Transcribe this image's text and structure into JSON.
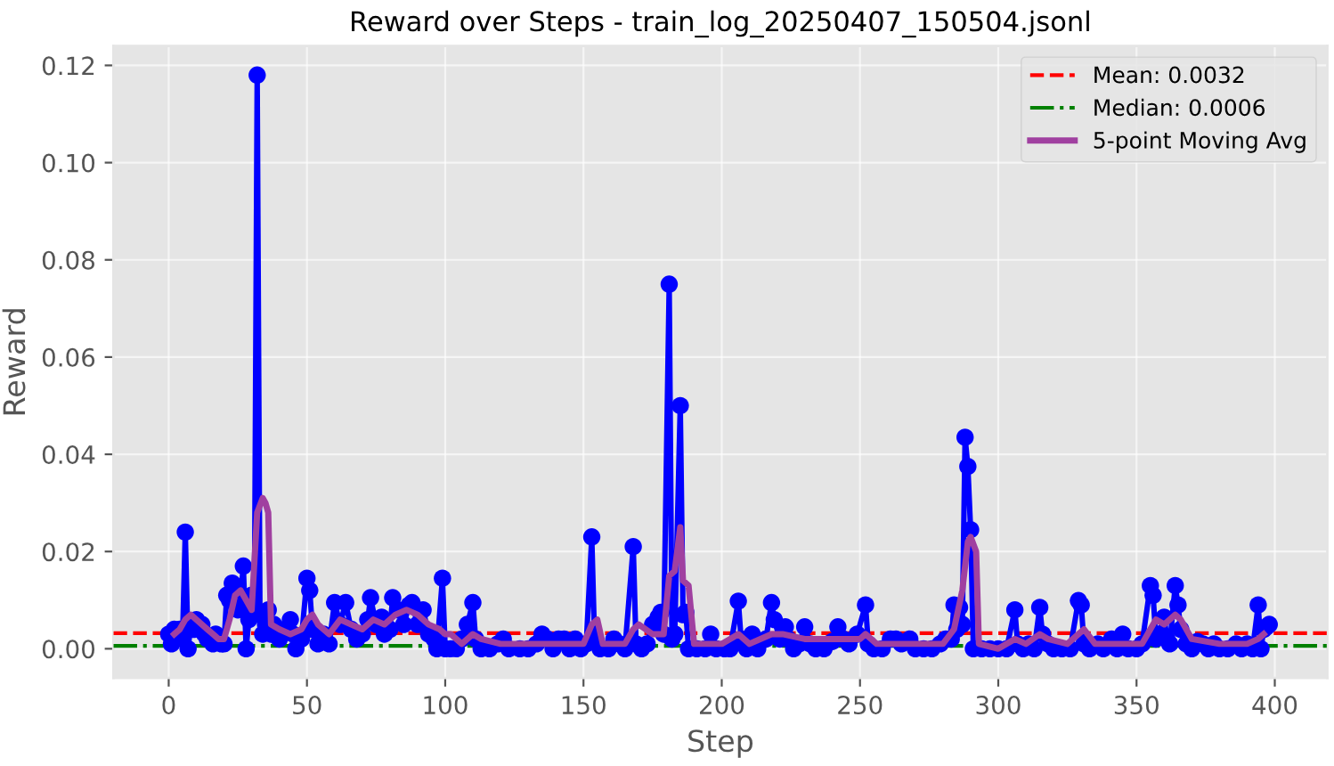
{
  "chart_data": {
    "type": "line",
    "title": "Reward over Steps - train_log_20250407_150504.jsonl",
    "xlabel": "Step",
    "ylabel": "Reward",
    "xlim": [
      -20,
      419
    ],
    "xticks": [
      0,
      50,
      100,
      150,
      200,
      250,
      300,
      350,
      400
    ],
    "ylim": [
      -0.006,
      0.124
    ],
    "yticks": [
      {
        "value": 0,
        "label": "0.00"
      },
      {
        "value": 0.02,
        "label": "0.02"
      },
      {
        "value": 0.04,
        "label": "0.04"
      },
      {
        "value": 0.06,
        "label": "0.06"
      },
      {
        "value": 0.08,
        "label": "0.08"
      },
      {
        "value": 0.1,
        "label": "0.10"
      },
      {
        "value": 0.12,
        "label": "0.12"
      }
    ],
    "grid": true,
    "legend": "top right",
    "series": [
      {
        "color": "#0000ff",
        "marker": "circle",
        "line_style": "solid",
        "x": [
          0,
          1,
          2,
          3,
          4,
          5,
          6,
          7,
          8,
          9,
          10,
          11,
          12,
          13,
          14,
          15,
          16,
          17,
          18,
          19,
          20,
          21,
          22,
          23,
          24,
          25,
          26,
          27,
          28,
          29,
          30,
          31,
          32,
          33,
          34,
          35,
          36,
          37,
          38,
          40,
          42,
          44,
          45,
          46,
          48,
          50,
          51,
          52,
          54,
          56,
          58,
          60,
          62,
          64,
          66,
          68,
          70,
          72,
          73,
          75,
          77,
          78,
          80,
          81,
          83,
          85,
          87,
          88,
          90,
          92,
          94,
          96,
          97,
          99,
          100,
          102,
          104,
          106,
          108,
          110,
          111,
          113,
          116,
          119,
          121,
          123,
          127,
          130,
          133,
          135,
          137,
          139,
          141,
          143,
          145,
          147,
          149,
          151,
          153,
          154,
          156,
          159,
          161,
          163,
          165,
          168,
          169,
          171,
          173,
          175,
          177,
          178,
          179,
          181,
          182,
          183,
          185,
          186,
          187,
          188,
          191,
          194,
          196,
          198,
          201,
          203,
          206,
          207,
          209,
          211,
          213,
          216,
          218,
          219,
          221,
          223,
          224,
          226,
          228,
          230,
          232,
          234,
          237,
          240,
          242,
          244,
          246,
          249,
          252,
          253,
          255,
          258,
          261,
          263,
          265,
          268,
          270,
          273,
          276,
          279,
          281,
          283,
          284,
          285,
          286,
          287,
          288,
          289,
          290,
          291,
          294,
          297,
          300,
          303,
          306,
          307,
          309,
          311,
          313,
          315,
          316,
          318,
          320,
          323,
          326,
          329,
          330,
          331,
          333,
          336,
          338,
          341,
          343,
          345,
          347,
          350,
          352,
          355,
          356,
          357,
          358,
          360,
          361,
          362,
          364,
          365,
          366,
          368,
          370,
          372,
          374,
          376,
          378,
          380,
          383,
          386,
          388,
          390,
          392,
          394,
          395,
          396,
          397,
          398
        ],
        "values": [
          0.003,
          0.001,
          0.004,
          0.003,
          0.004,
          0.002,
          0.024,
          0.0,
          0.005,
          0.004,
          0.006,
          0.004,
          0.005,
          0.003,
          0.002,
          0.002,
          0.001,
          0.003,
          0.002,
          0.001,
          0.001,
          0.011,
          0.01,
          0.0135,
          0.012,
          0.008,
          0.011,
          0.017,
          0.0,
          0.006,
          0.011,
          0.008,
          0.118,
          0.007,
          0.003,
          0.005,
          0.008,
          0.003,
          0.005,
          0.002,
          0.004,
          0.006,
          0.003,
          0.0,
          0.002,
          0.0145,
          0.012,
          0.004,
          0.001,
          0.003,
          0.001,
          0.0095,
          0.005,
          0.0095,
          0.004,
          0.002,
          0.003,
          0.006,
          0.0105,
          0.005,
          0.0065,
          0.003,
          0.004,
          0.0105,
          0.008,
          0.005,
          0.009,
          0.0095,
          0.005,
          0.008,
          0.003,
          0.002,
          0.0,
          0.0145,
          0.0,
          0.0,
          0.0,
          0.002,
          0.005,
          0.0095,
          0.002,
          0.0,
          0.0,
          0.001,
          0.002,
          0.0,
          0.0,
          0.0,
          0.001,
          0.003,
          0.002,
          0.0,
          0.002,
          0.002,
          0.0,
          0.002,
          0.0,
          0.001,
          0.023,
          0.002,
          0.0,
          0.0,
          0.002,
          0.001,
          0.0,
          0.021,
          0.001,
          0.0,
          0.001,
          0.005,
          0.0065,
          0.0075,
          0.003,
          0.075,
          0.002,
          0.003,
          0.05,
          0.007,
          0.0075,
          0.0,
          0.0,
          0.0,
          0.003,
          0.0,
          0.0,
          0.0,
          0.0098,
          0.002,
          0.0,
          0.003,
          0.0,
          0.002,
          0.0095,
          0.006,
          0.002,
          0.0045,
          0.002,
          0.0,
          0.001,
          0.0045,
          0.001,
          0.0,
          0.0,
          0.0015,
          0.0045,
          0.002,
          0.001,
          0.003,
          0.009,
          0.001,
          0.0,
          0.0,
          0.002,
          0.002,
          0.001,
          0.002,
          0.0,
          0.0,
          0.0,
          0.001,
          0.002,
          0.002,
          0.009,
          0.004,
          0.0085,
          0.005,
          0.0435,
          0.0375,
          0.0245,
          0.0,
          0.0,
          0.0,
          0.0,
          0.0,
          0.008,
          0.001,
          0.0,
          0.001,
          0.0,
          0.0085,
          0.003,
          0.001,
          0.0,
          0.0,
          0.0,
          0.0099,
          0.009,
          0.001,
          0.0,
          0.001,
          0.0,
          0.002,
          0.0,
          0.003,
          0.0,
          0.0,
          0.001,
          0.013,
          0.011,
          0.002,
          0.003,
          0.0065,
          0.002,
          0.001,
          0.013,
          0.009,
          0.004,
          0.001,
          0.0,
          0.0015,
          0.001,
          0.0,
          0.001,
          0.0,
          0.0,
          0.001,
          0.0,
          0.001,
          0.0,
          0.009,
          0.0,
          0.004,
          0.0045,
          0.005
        ]
      },
      {
        "name": "5-point Moving Avg",
        "color": "#a040a0",
        "marker": "none",
        "line_style": "solid",
        "x": [
          2,
          4,
          6,
          8,
          10,
          12,
          14,
          16,
          18,
          20,
          22,
          24,
          26,
          28,
          30,
          32,
          34,
          35,
          36,
          37,
          40,
          44,
          48,
          50,
          52,
          54,
          58,
          62,
          66,
          70,
          74,
          78,
          82,
          86,
          90,
          94,
          98,
          100,
          102,
          106,
          110,
          113,
          120,
          130,
          140,
          150,
          153,
          155,
          157,
          165,
          168,
          170,
          175,
          179,
          181,
          183,
          185,
          186,
          188,
          190,
          200,
          206,
          210,
          218,
          222,
          230,
          240,
          250,
          252,
          256,
          270,
          280,
          284,
          287,
          289,
          290,
          292,
          293,
          300,
          306,
          310,
          315,
          318,
          325,
          329,
          331,
          335,
          345,
          352,
          355,
          357,
          360,
          364,
          366,
          370,
          380,
          390,
          394,
          396
        ],
        "values": [
          0.003,
          0.004,
          0.006,
          0.007,
          0.006,
          0.005,
          0.004,
          0.003,
          0.002,
          0.002,
          0.006,
          0.011,
          0.012,
          0.01,
          0.008,
          0.028,
          0.031,
          0.03,
          0.028,
          0.005,
          0.004,
          0.003,
          0.004,
          0.006,
          0.007,
          0.005,
          0.003,
          0.006,
          0.005,
          0.004,
          0.006,
          0.005,
          0.007,
          0.008,
          0.007,
          0.005,
          0.004,
          0.003,
          0.003,
          0.001,
          0.003,
          0.002,
          0.001,
          0.001,
          0.001,
          0.001,
          0.005,
          0.006,
          0.001,
          0.001,
          0.004,
          0.005,
          0.003,
          0.003,
          0.015,
          0.016,
          0.025,
          0.014,
          0.013,
          0.001,
          0.001,
          0.003,
          0.001,
          0.003,
          0.003,
          0.002,
          0.002,
          0.002,
          0.003,
          0.001,
          0.001,
          0.001,
          0.004,
          0.012,
          0.022,
          0.023,
          0.02,
          0.001,
          0.0,
          0.002,
          0.001,
          0.003,
          0.002,
          0.001,
          0.003,
          0.004,
          0.001,
          0.001,
          0.001,
          0.004,
          0.006,
          0.005,
          0.007,
          0.006,
          0.002,
          0.001,
          0.001,
          0.002,
          0.003
        ]
      }
    ],
    "ref_lines": [
      {
        "axis": "y",
        "value": 0.0032,
        "label": "Mean: 0.0032",
        "color": "#ff0000",
        "line_style": "dashed"
      },
      {
        "axis": "y",
        "value": 0.0006,
        "label": "Median: 0.0006",
        "color": "#008000",
        "line_style": "dashdot"
      }
    ]
  }
}
